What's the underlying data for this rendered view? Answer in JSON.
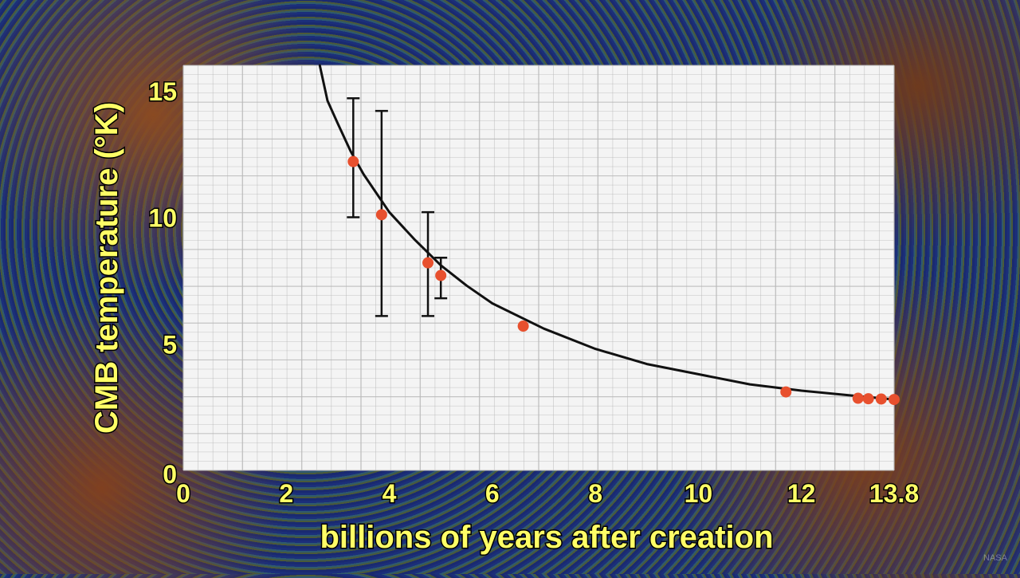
{
  "watermark": "NASA",
  "chart_data": {
    "type": "scatter",
    "xlabel": "billions of years after creation",
    "ylabel": "CMB temperature (°K)",
    "xlim": [
      0,
      13.8
    ],
    "ylim": [
      0,
      16
    ],
    "x_ticks": [
      "0",
      "2",
      "4",
      "6",
      "8",
      "10",
      "12",
      "13.8"
    ],
    "x_tick_values": [
      0,
      2,
      4,
      6,
      8,
      10,
      12,
      13.8
    ],
    "y_ticks": [
      "0",
      "5",
      "10",
      "15"
    ],
    "y_tick_values": [
      0,
      5,
      10,
      15
    ],
    "grid": true,
    "colors": {
      "points": "#e8502e",
      "curve": "#111111",
      "axis_text": "#ffff66",
      "plot_bg": "#f4f4f4",
      "grid": "#b8b8b8"
    },
    "curve": {
      "description_points": [
        [
          2.65,
          16.0
        ],
        [
          2.8,
          14.6
        ],
        [
          3.0,
          13.7
        ],
        [
          3.25,
          12.6
        ],
        [
          3.5,
          11.7
        ],
        [
          4.0,
          10.2
        ],
        [
          4.5,
          9.1
        ],
        [
          5.0,
          8.1
        ],
        [
          5.5,
          7.3
        ],
        [
          6.0,
          6.6
        ],
        [
          7.0,
          5.6
        ],
        [
          8.0,
          4.8
        ],
        [
          9.0,
          4.2
        ],
        [
          10.0,
          3.8
        ],
        [
          11.0,
          3.4
        ],
        [
          12.0,
          3.15
        ],
        [
          13.0,
          2.95
        ],
        [
          13.8,
          2.8
        ]
      ]
    },
    "points": [
      {
        "x": 3.3,
        "y": 12.2,
        "err_low": 10.0,
        "err_high": 14.7
      },
      {
        "x": 3.85,
        "y": 10.1,
        "err_low": 6.1,
        "err_high": 14.2
      },
      {
        "x": 4.75,
        "y": 8.2,
        "err_low": 6.1,
        "err_high": 10.2
      },
      {
        "x": 5.0,
        "y": 7.7,
        "err_low": 6.8,
        "err_high": 8.4
      },
      {
        "x": 6.6,
        "y": 5.7
      },
      {
        "x": 11.7,
        "y": 3.1
      },
      {
        "x": 13.1,
        "y": 2.85
      },
      {
        "x": 13.3,
        "y": 2.83
      },
      {
        "x": 13.55,
        "y": 2.82
      },
      {
        "x": 13.8,
        "y": 2.8
      }
    ]
  }
}
